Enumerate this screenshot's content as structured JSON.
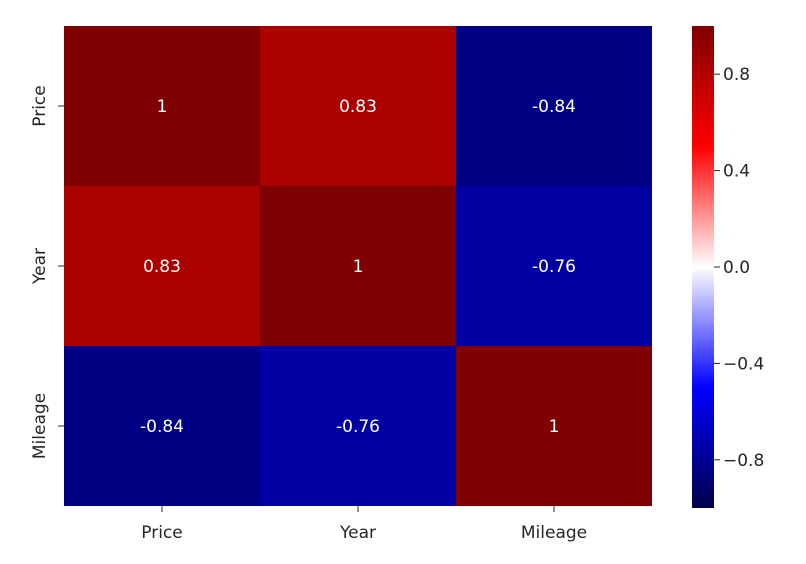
{
  "chart_data": {
    "type": "heatmap",
    "title": "",
    "xlabel": "",
    "ylabel": "",
    "x_categories": [
      "Price",
      "Year",
      "Mileage"
    ],
    "y_categories": [
      "Price",
      "Year",
      "Mileage"
    ],
    "values": [
      [
        1,
        0.83,
        -0.84
      ],
      [
        0.83,
        1,
        -0.76
      ],
      [
        -0.84,
        -0.76,
        1
      ]
    ],
    "annotations": [
      [
        "1",
        "0.83",
        "-0.84"
      ],
      [
        "0.83",
        "1",
        "-0.76"
      ],
      [
        "-0.84",
        "-0.76",
        "1"
      ]
    ],
    "colormap": "seismic",
    "vmin": -1,
    "vmax": 1,
    "colorbar": {
      "ticks": [
        0.8,
        0.4,
        0.0,
        -0.4,
        -0.8
      ],
      "tick_labels": [
        "0.8",
        "0.4",
        "0.0",
        "−0.4",
        "−0.8"
      ]
    },
    "annotation_color": "#ffffff"
  }
}
